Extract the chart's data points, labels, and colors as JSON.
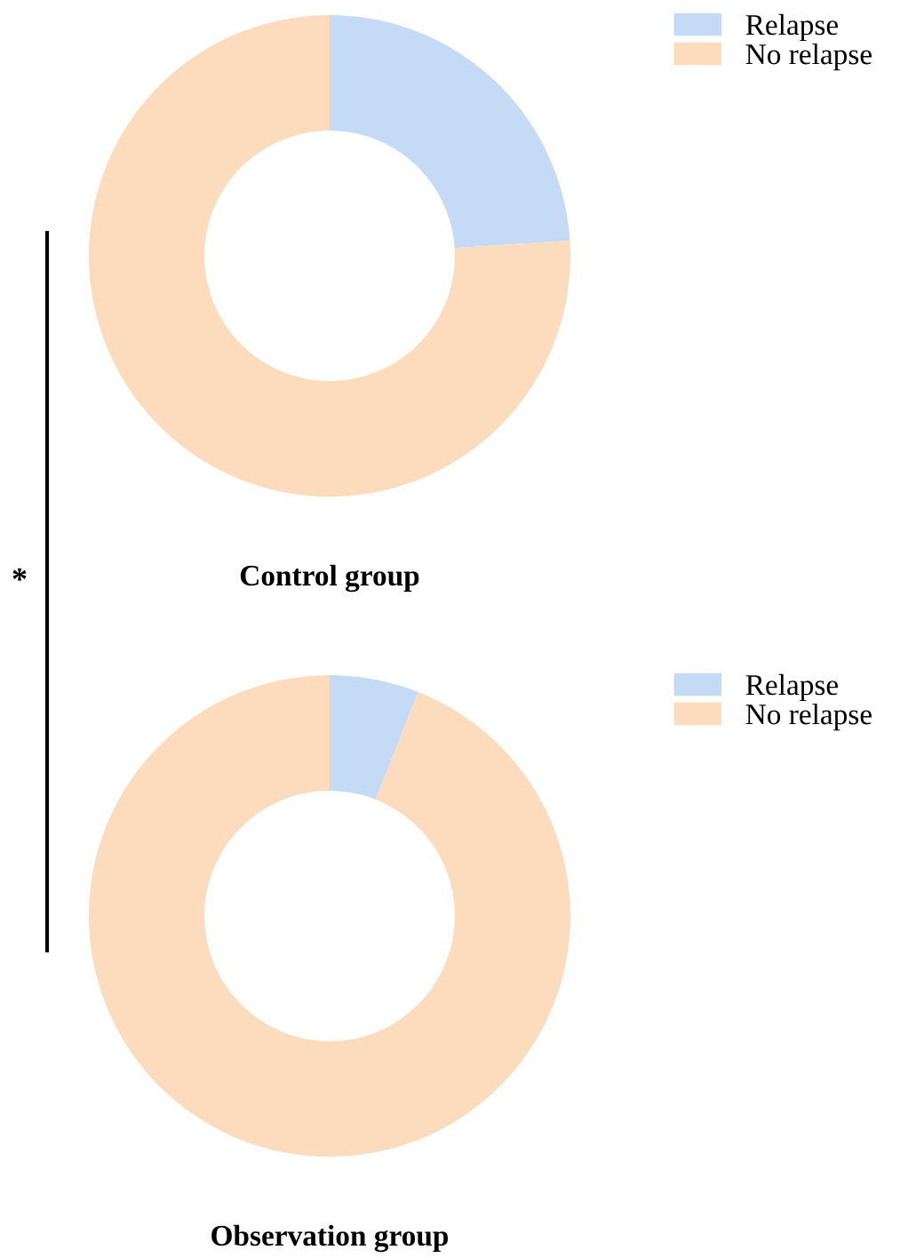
{
  "chart_data": [
    {
      "type": "donut",
      "title": "Control group",
      "categories": [
        "Relapse",
        "No relapse"
      ],
      "values": [
        24,
        76
      ],
      "colors": [
        "#c5daf5",
        "#fcdcbc"
      ],
      "legend": "top right",
      "annotations": [
        "*"
      ]
    },
    {
      "type": "donut",
      "title": "Observation group",
      "categories": [
        "Relapse",
        "No relapse"
      ],
      "values": [
        6,
        94
      ],
      "colors": [
        "#c5daf5",
        "#fcdcbc"
      ],
      "legend": "top right"
    }
  ]
}
